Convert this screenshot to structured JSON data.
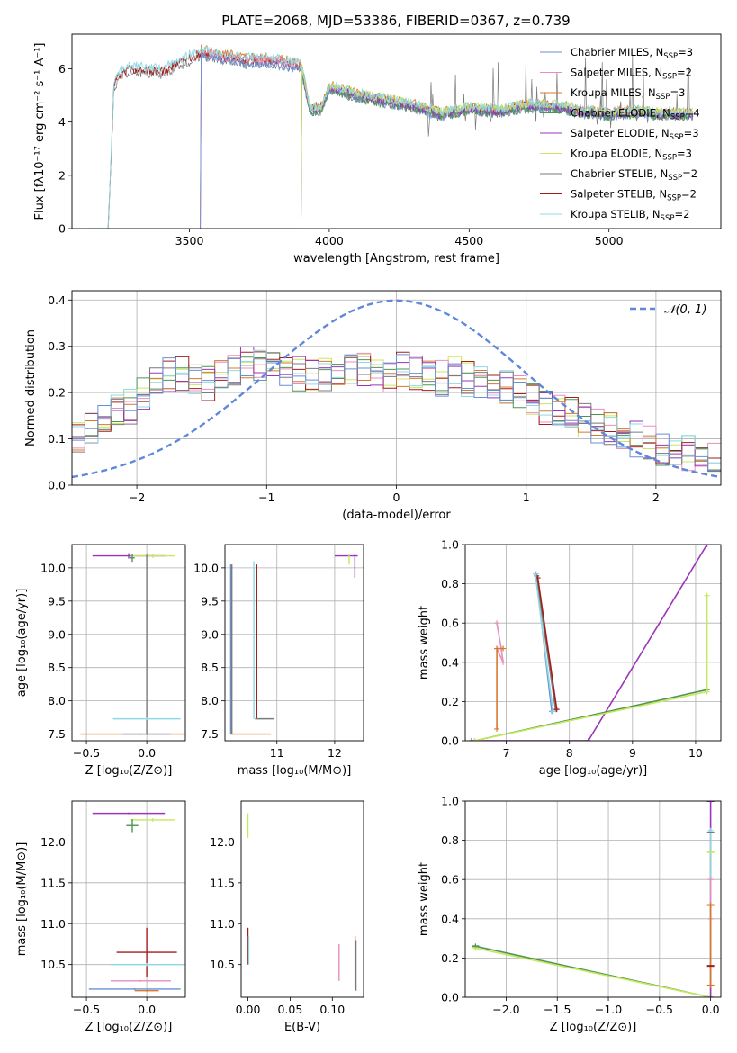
{
  "colors": {
    "chabrier_miles": "#6a8fd3",
    "salpeter_miles": "#e58fbf",
    "kroupa_miles": "#d8782e",
    "chabrier_elodie": "#4e9555",
    "salpeter_elodie": "#9a36b8",
    "kroupa_elodie": "#c6e85c",
    "chabrier_stelib": "#7a7a7a",
    "salpeter_stelib": "#a51c1c",
    "kroupa_stelib": "#8fd9e3",
    "normal": "#5f88dd",
    "grid": "#b0b0b0"
  },
  "chart_data": [
    {
      "type": "line",
      "title": "PLATE=2068, MJD=53386, FIBERID=0367, z=0.739",
      "xlabel": "wavelength [Angstrom, rest frame]",
      "ylabel": "Flux [fλ10⁻¹⁷ erg cm⁻² s⁻¹ A⁻¹]",
      "xlim": [
        3080,
        5400
      ],
      "ylim": [
        0,
        7.3
      ],
      "xticks": [
        "3500",
        "4000",
        "4500",
        "5000"
      ],
      "yticks": [
        "0",
        "2",
        "4",
        "6"
      ],
      "grid": false,
      "legend_position": "top-right",
      "series": [
        {
          "name": "Chabrier MILES, N",
          "name_sub": "SSP",
          "name_suffix": "=3",
          "color_key": "chabrier_miles",
          "start": 3540
        },
        {
          "name": "Salpeter MILES, N",
          "name_sub": "SSP",
          "name_suffix": "=2",
          "color_key": "salpeter_miles",
          "start": 3540
        },
        {
          "name": "Kroupa MILES, N",
          "name_sub": "SSP",
          "name_suffix": "=3",
          "color_key": "kroupa_miles",
          "start": 3540
        },
        {
          "name": "Chabrier ELODIE, N",
          "name_sub": "SSP",
          "name_suffix": "=4",
          "color_key": "chabrier_elodie",
          "start": 3900
        },
        {
          "name": "Salpeter ELODIE, N",
          "name_sub": "SSP",
          "name_suffix": "=3",
          "color_key": "salpeter_elodie",
          "start": 3900
        },
        {
          "name": "Kroupa ELODIE, N",
          "name_sub": "SSP",
          "name_suffix": "=3",
          "color_key": "kroupa_elodie",
          "start": 3900
        },
        {
          "name": "Chabrier STELIB, N",
          "name_sub": "SSP",
          "name_suffix": "=2",
          "color_key": "chabrier_stelib",
          "start": 3210
        },
        {
          "name": "Salpeter STELIB, N",
          "name_sub": "SSP",
          "name_suffix": "=2",
          "color_key": "salpeter_stelib",
          "start": 3210
        },
        {
          "name": "Kroupa STELIB, N",
          "name_sub": "SSP",
          "name_suffix": "=2",
          "color_key": "kroupa_stelib",
          "start": 3210
        }
      ],
      "continuum_profile": {
        "x": [
          3210,
          3230,
          3260,
          3300,
          3400,
          3500,
          3540,
          3600,
          3700,
          3800,
          3900,
          3930,
          3970,
          4000,
          4100,
          4200,
          4300,
          4400,
          4500,
          4600,
          4700,
          4800,
          4900,
          5000,
          5100,
          5200
        ],
        "y": [
          0,
          5.4,
          5.9,
          6.0,
          5.9,
          6.4,
          6.6,
          6.5,
          6.3,
          6.3,
          6.1,
          4.5,
          4.5,
          5.3,
          5.0,
          4.8,
          4.6,
          4.3,
          4.5,
          4.4,
          4.6,
          4.6,
          4.4,
          4.3,
          4.4,
          4.3
        ]
      }
    },
    {
      "type": "line",
      "xlabel": "(data-model)/error",
      "ylabel": "Normed distribution",
      "xlim": [
        -2.5,
        2.5
      ],
      "ylim": [
        0,
        0.42
      ],
      "xticks": [
        "−2",
        "−1",
        "0",
        "1",
        "2"
      ],
      "yticks": [
        "0.0",
        "0.1",
        "0.2",
        "0.3",
        "0.4"
      ],
      "grid": true,
      "legend_position": "top-right",
      "normal_curve": {
        "label_main": "𝒩(0, 1)",
        "mean": 0,
        "sigma": 1
      },
      "histograms": {
        "bin_count": 50,
        "mean_profile": [
          0.1,
          0.12,
          0.15,
          0.16,
          0.17,
          0.2,
          0.22,
          0.24,
          0.24,
          0.23,
          0.22,
          0.24,
          0.25,
          0.26,
          0.26,
          0.25,
          0.25,
          0.24,
          0.24,
          0.24,
          0.24,
          0.25,
          0.25,
          0.24,
          0.24,
          0.25,
          0.24,
          0.24,
          0.23,
          0.24,
          0.23,
          0.22,
          0.21,
          0.21,
          0.2,
          0.18,
          0.17,
          0.16,
          0.15,
          0.14,
          0.13,
          0.12,
          0.11,
          0.1,
          0.09,
          0.08,
          0.07,
          0.07,
          0.06,
          0.06
        ]
      }
    },
    {
      "type": "scatter",
      "xlabel": "Z [log₁₀(Z/Z⊙)]",
      "ylabel": "age  [log₁₀(age/yr)]",
      "xlim": [
        -0.62,
        0.32
      ],
      "ylim": [
        7.4,
        10.35
      ],
      "xticks": [
        "−0.5",
        "0.0"
      ],
      "yticks": [
        "7.5",
        "8.0",
        "8.5",
        "9.0",
        "9.5",
        "10.0"
      ],
      "grid": true,
      "points": [
        {
          "x": -0.15,
          "y": 10.18,
          "xerr": 0.3,
          "yerr": 0.04,
          "c": "salpeter_elodie"
        },
        {
          "x": 0.05,
          "y": 10.18,
          "xerr": 0.18,
          "yerr": 0.03,
          "c": "kroupa_elodie"
        },
        {
          "x": -0.12,
          "y": 10.15,
          "xerr": 0.02,
          "yerr": 0.06,
          "c": "chabrier_elodie"
        },
        {
          "x": 0.0,
          "y": 8.85,
          "xerr": 0.005,
          "yerr": 1.35,
          "c": "chabrier_stelib"
        },
        {
          "x": 0.0,
          "y": 7.73,
          "xerr": 0.28,
          "yerr": 0.02,
          "c": "kroupa_stelib"
        },
        {
          "x": -0.05,
          "y": 7.5,
          "xerr": 0.5,
          "yerr": 0.01,
          "c": "kroupa_miles"
        },
        {
          "x": 0.0,
          "y": 7.5,
          "xerr": 0.2,
          "yerr": 0.01,
          "c": "chabrier_miles"
        }
      ]
    },
    {
      "type": "scatter",
      "xlabel": "mass [log₁₀(M/M⊙)]",
      "xlim": [
        10.1,
        12.5
      ],
      "ylim": [
        7.4,
        10.35
      ],
      "xticks": [
        "11",
        "12"
      ],
      "yticks": [
        "7.5",
        "8.0",
        "8.5",
        "9.0",
        "9.5",
        "10.0"
      ],
      "grid": true,
      "segments": [
        {
          "x1": 10.2,
          "y1": 7.5,
          "x2": 10.2,
          "y2": 10.05,
          "c": "chabrier_miles"
        },
        {
          "x1": 10.22,
          "y1": 7.5,
          "x2": 10.22,
          "y2": 10.05,
          "c": "chabrier_stelib"
        },
        {
          "x1": 10.6,
          "y1": 7.73,
          "x2": 10.6,
          "y2": 10.1,
          "c": "kroupa_stelib"
        },
        {
          "x1": 10.65,
          "y1": 7.73,
          "x2": 10.65,
          "y2": 10.05,
          "c": "salpeter_stelib"
        },
        {
          "x1": 10.2,
          "y1": 7.5,
          "x2": 10.9,
          "y2": 7.5,
          "c": "kroupa_miles"
        },
        {
          "x1": 10.62,
          "y1": 7.73,
          "x2": 10.95,
          "y2": 7.73,
          "c": "chabrier_stelib"
        },
        {
          "x1": 12.0,
          "y1": 10.18,
          "x2": 12.4,
          "y2": 10.18,
          "c": "salpeter_elodie"
        },
        {
          "x1": 12.35,
          "y1": 9.85,
          "x2": 12.35,
          "y2": 10.2,
          "c": "salpeter_elodie"
        },
        {
          "x1": 12.25,
          "y1": 10.05,
          "x2": 12.25,
          "y2": 10.2,
          "c": "kroupa_elodie"
        }
      ]
    },
    {
      "type": "line",
      "xlabel": "age  [log₁₀(age/yr)]",
      "ylabel": "mass weight",
      "xlim": [
        6.35,
        10.4
      ],
      "ylim": [
        0,
        1.0
      ],
      "xticks": [
        "7",
        "8",
        "9",
        "10"
      ],
      "yticks": [
        "0.0",
        "0.2",
        "0.4",
        "0.6",
        "0.8",
        "1.0"
      ],
      "grid": true,
      "series": [
        {
          "c": "salpeter_miles",
          "x": [
            6.85,
            6.92,
            6.95,
            6.85
          ],
          "y": [
            0.6,
            0.47,
            0.4,
            0.47
          ]
        },
        {
          "c": "kroupa_miles",
          "x": [
            6.85,
            6.85,
            6.95
          ],
          "y": [
            0.06,
            0.47,
            0.47
          ]
        },
        {
          "c": "chabrier_miles",
          "x": [
            7.47,
            7.72
          ],
          "y": [
            0.85,
            0.15
          ]
        },
        {
          "c": "chabrier_stelib",
          "x": [
            7.48,
            7.78
          ],
          "y": [
            0.84,
            0.16
          ]
        },
        {
          "c": "salpeter_stelib",
          "x": [
            7.5,
            7.8
          ],
          "y": [
            0.83,
            0.16
          ]
        },
        {
          "c": "kroupa_stelib",
          "x": [
            7.46,
            7.74
          ],
          "y": [
            0.85,
            0.15
          ]
        },
        {
          "c": "salpeter_elodie",
          "x": [
            6.45,
            8.3,
            10.18
          ],
          "y": [
            0.0,
            0.0,
            1.0
          ]
        },
        {
          "c": "chabrier_elodie",
          "x": [
            6.5,
            10.18
          ],
          "y": [
            0.0,
            0.26
          ]
        },
        {
          "c": "kroupa_elodie",
          "x": [
            6.5,
            10.18,
            10.18
          ],
          "y": [
            0.0,
            0.25,
            0.74
          ]
        }
      ]
    },
    {
      "type": "scatter",
      "xlabel": "Z [log₁₀(Z/Z⊙)]",
      "ylabel": "mass [log₁₀(M/M⊙)]",
      "xlim": [
        -0.62,
        0.32
      ],
      "ylim": [
        10.1,
        12.5
      ],
      "xticks": [
        "−0.5",
        "0.0"
      ],
      "yticks": [
        "10.5",
        "11.0",
        "11.5",
        "12.0"
      ],
      "grid": true,
      "points": [
        {
          "x": -0.15,
          "y": 12.35,
          "xerr": 0.3,
          "yerr": 0.01,
          "c": "salpeter_elodie"
        },
        {
          "x": 0.05,
          "y": 12.27,
          "xerr": 0.18,
          "yerr": 0.02,
          "c": "kroupa_elodie"
        },
        {
          "x": -0.12,
          "y": 12.2,
          "xerr": 0.05,
          "yerr": 0.08,
          "c": "chabrier_elodie"
        },
        {
          "x": 0.0,
          "y": 10.65,
          "xerr": 0.25,
          "yerr": 0.3,
          "c": "salpeter_stelib"
        },
        {
          "x": 0.0,
          "y": 10.5,
          "xerr": 0.3,
          "yerr": 0.02,
          "c": "kroupa_stelib"
        },
        {
          "x": -0.05,
          "y": 10.3,
          "xerr": 0.25,
          "yerr": 0.01,
          "c": "salpeter_miles"
        },
        {
          "x": -0.1,
          "y": 10.2,
          "xerr": 0.38,
          "yerr": 0.01,
          "c": "chabrier_miles"
        },
        {
          "x": 0.0,
          "y": 10.18,
          "xerr": 0.1,
          "yerr": 0.01,
          "c": "kroupa_miles"
        }
      ]
    },
    {
      "type": "scatter",
      "xlabel": "E(B-V)",
      "xlim": [
        -0.008,
        0.137
      ],
      "ylim": [
        10.1,
        12.5
      ],
      "xticks": [
        "0.00",
        "0.05",
        "0.10"
      ],
      "yticks": [
        "10.5",
        "11.0",
        "11.5",
        "12.0"
      ],
      "grid": false,
      "segments": [
        {
          "x1": 0.0,
          "y1": 12.05,
          "x2": 0.0,
          "y2": 12.35,
          "c": "kroupa_elodie"
        },
        {
          "x1": 0.0,
          "y1": 10.5,
          "x2": 0.0,
          "y2": 10.95,
          "c": "salpeter_stelib"
        },
        {
          "x1": 0.001,
          "y1": 10.5,
          "x2": 0.001,
          "y2": 10.85,
          "c": "kroupa_stelib"
        },
        {
          "x1": 0.108,
          "y1": 10.3,
          "x2": 0.108,
          "y2": 10.75,
          "c": "salpeter_miles"
        },
        {
          "x1": 0.127,
          "y1": 10.2,
          "x2": 0.127,
          "y2": 10.85,
          "c": "kroupa_miles"
        },
        {
          "x1": 0.128,
          "y1": 10.18,
          "x2": 0.128,
          "y2": 10.8,
          "c": "chabrier_stelib"
        }
      ]
    },
    {
      "type": "line",
      "xlabel": "Z [log₁₀(Z/Z⊙)]",
      "ylabel": "mass weight",
      "xlim": [
        -2.4,
        0.1
      ],
      "ylim": [
        0,
        1.0
      ],
      "xticks": [
        "−2.0",
        "−1.5",
        "−1.0",
        "−0.5",
        "0.0"
      ],
      "yticks": [
        "0.0",
        "0.2",
        "0.4",
        "0.6",
        "0.8",
        "1.0"
      ],
      "grid": true,
      "series": [
        {
          "c": "chabrier_elodie",
          "x": [
            -2.3,
            0.0
          ],
          "y": [
            0.26,
            0.0
          ]
        },
        {
          "c": "kroupa_elodie",
          "x": [
            -2.3,
            0.0,
            0.0
          ],
          "y": [
            0.25,
            0.0,
            0.74
          ]
        },
        {
          "c": "salpeter_elodie",
          "x": [
            0.0,
            0.0
          ],
          "y": [
            0.0,
            1.0
          ]
        },
        {
          "c": "kroupa_stelib",
          "x": [
            0.0,
            0.0
          ],
          "y": [
            0.15,
            0.85
          ]
        },
        {
          "c": "salpeter_miles",
          "x": [
            0.0,
            0.0
          ],
          "y": [
            0.4,
            0.6
          ]
        },
        {
          "c": "kroupa_miles",
          "x": [
            0.0,
            0.0
          ],
          "y": [
            0.06,
            0.47
          ]
        }
      ],
      "markers": [
        {
          "x": 0.0,
          "y": 0.84,
          "c": "chabrier_stelib"
        },
        {
          "x": 0.0,
          "y": 0.74,
          "c": "kroupa_elodie"
        },
        {
          "x": 0.0,
          "y": 0.47,
          "c": "kroupa_miles"
        },
        {
          "x": 0.0,
          "y": 0.16,
          "c": "salpeter_stelib"
        },
        {
          "x": 0.0,
          "y": 0.06,
          "c": "kroupa_miles"
        },
        {
          "x": -2.3,
          "y": 0.26,
          "c": "chabrier_elodie"
        },
        {
          "x": 0.0,
          "y": 1.0,
          "c": "salpeter_elodie"
        }
      ]
    }
  ]
}
